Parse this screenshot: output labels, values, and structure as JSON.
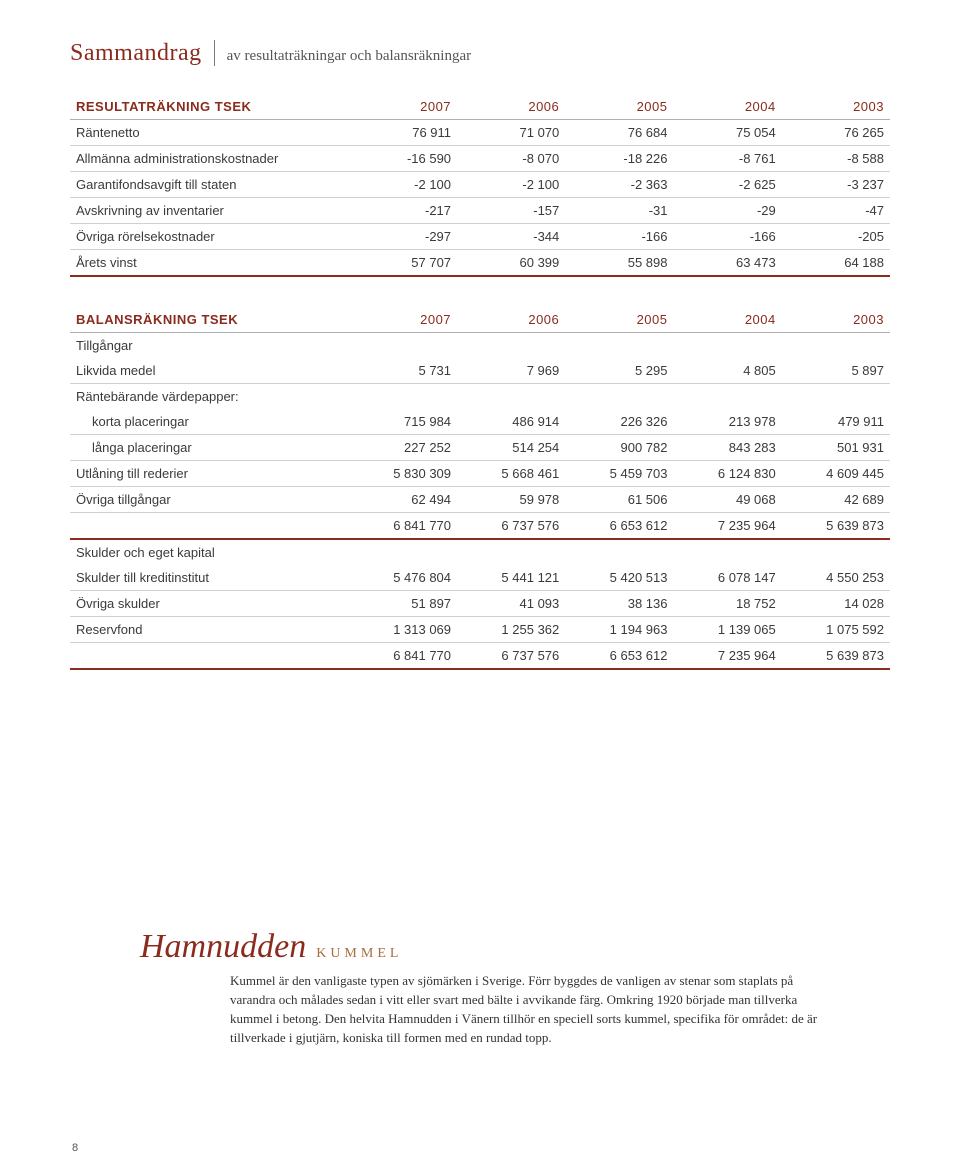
{
  "title": {
    "main": "Sammandrag",
    "sub": "av resultaträkningar och balansräkningar"
  },
  "accent_color": "#8a2b1d",
  "income": {
    "heading": "RESULTATRÄKNING TSEK",
    "years": [
      "2007",
      "2006",
      "2005",
      "2004",
      "2003"
    ],
    "rows": [
      {
        "label": "Räntenetto",
        "vals": [
          "76 911",
          "71 070",
          "76 684",
          "75 054",
          "76 265"
        ]
      },
      {
        "label": "Allmänna administrationskostnader",
        "vals": [
          "-16 590",
          "-8 070",
          "-18 226",
          "-8 761",
          "-8 588"
        ]
      },
      {
        "label": "Garantifondsavgift till staten",
        "vals": [
          "-2 100",
          "-2 100",
          "-2 363",
          "-2 625",
          "-3 237"
        ]
      },
      {
        "label": "Avskrivning av inventarier",
        "vals": [
          "-217",
          "-157",
          "-31",
          "-29",
          "-47"
        ]
      },
      {
        "label": "Övriga rörelsekostnader",
        "vals": [
          "-297",
          "-344",
          "-166",
          "-166",
          "-205"
        ]
      }
    ],
    "total": {
      "label": "Årets vinst",
      "vals": [
        "57 707",
        "60 399",
        "55 898",
        "63 473",
        "64 188"
      ]
    }
  },
  "balance": {
    "heading": "BALANSRÄKNING TSEK",
    "years": [
      "2007",
      "2006",
      "2005",
      "2004",
      "2003"
    ],
    "assets_head": "Tillgångar",
    "assets": [
      {
        "label": "Likvida medel",
        "vals": [
          "5 731",
          "7 969",
          "5 295",
          "4 805",
          "5 897"
        ],
        "underline": true
      }
    ],
    "rb_label": "Räntebärande värdepapper:",
    "rb_rows": [
      {
        "label": "korta placeringar",
        "vals": [
          "715 984",
          "486 914",
          "226 326",
          "213 978",
          "479 911"
        ]
      },
      {
        "label": "långa placeringar",
        "vals": [
          "227 252",
          "514 254",
          "900 782",
          "843 283",
          "501 931"
        ]
      }
    ],
    "assets2": [
      {
        "label": "Utlåning till rederier",
        "vals": [
          "5 830 309",
          "5 668 461",
          "5 459 703",
          "6 124 830",
          "4 609 445"
        ]
      },
      {
        "label": "Övriga tillgångar",
        "vals": [
          "62 494",
          "59 978",
          "61 506",
          "49 068",
          "42 689"
        ]
      }
    ],
    "assets_total": [
      "6 841 770",
      "6 737 576",
      "6 653 612",
      "7 235 964",
      "5 639 873"
    ],
    "liab_head": "Skulder och eget kapital",
    "liab": [
      {
        "label": "Skulder till kreditinstitut",
        "vals": [
          "5 476 804",
          "5 441 121",
          "5 420 513",
          "6 078 147",
          "4 550 253"
        ]
      },
      {
        "label": "Övriga skulder",
        "vals": [
          "51 897",
          "41 093",
          "38 136",
          "18 752",
          "14 028"
        ]
      },
      {
        "label": "Reservfond",
        "vals": [
          "1 313 069",
          "1 255 362",
          "1 194 963",
          "1 139 065",
          "1 075 592"
        ]
      }
    ],
    "liab_total": [
      "6 841 770",
      "6 737 576",
      "6 653 612",
      "7 235 964",
      "5 639 873"
    ]
  },
  "kummel": {
    "script": "Hamnudden",
    "caps": "KUMMEL",
    "body": "Kummel är den vanligaste typen av sjömärken i Sverige. Förr byggdes de vanligen av stenar som staplats på varandra och målades sedan i vitt eller svart med bälte i avvikande färg. Omkring 1920 började man tillverka kummel i betong. Den helvita Hamnudden i Vänern tillhör en speciell sorts kummel, specifika för området: de är tillverkade i gjutjärn, koniska till formen med en rundad topp."
  },
  "page_number": "8"
}
